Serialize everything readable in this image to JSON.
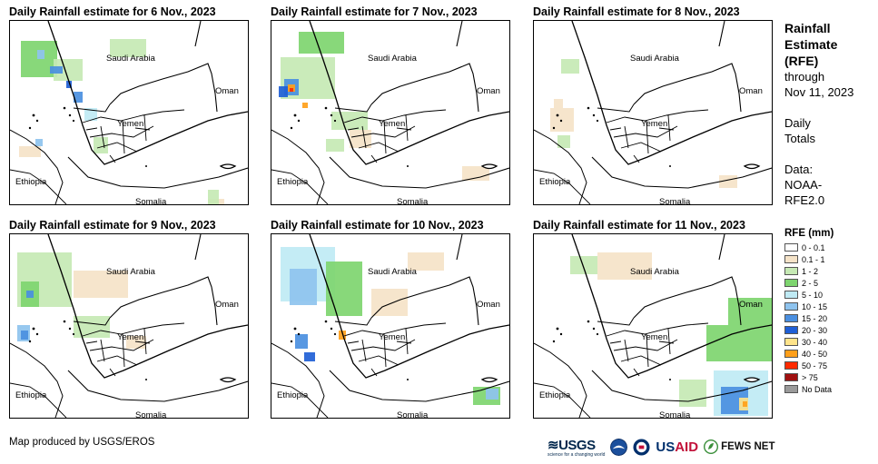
{
  "panels": [
    {
      "title": "Daily Rainfall estimate for 6 Nov., 2023"
    },
    {
      "title": "Daily Rainfall estimate for 7 Nov., 2023"
    },
    {
      "title": "Daily Rainfall estimate for 8 Nov., 2023"
    },
    {
      "title": "Daily Rainfall estimate for 9 Nov., 2023"
    },
    {
      "title": "Daily Rainfall estimate for 10 Nov., 2023"
    },
    {
      "title": "Daily Rainfall estimate for 11 Nov., 2023"
    }
  ],
  "map_labels": {
    "saudi": "Saudi Arabia",
    "oman": "Oman",
    "yemen": "Yemen",
    "ethiopia": "Ethiopia",
    "somalia": "Somalia"
  },
  "side_text": {
    "heading_1": "Rainfall",
    "heading_2": "Estimate",
    "heading_3": "(RFE)",
    "through": "through",
    "date": "Nov 11, 2023",
    "daily": "Daily",
    "totals": "Totals",
    "data_label": "Data:",
    "source_1": "NOAA-",
    "source_2": "RFE2.0"
  },
  "legend": {
    "title": "RFE (mm)",
    "items": [
      {
        "label": "0 - 0.1",
        "color": "#ffffff"
      },
      {
        "label": "0.1 - 1",
        "color": "#f5e3c8"
      },
      {
        "label": "1 - 2",
        "color": "#c6e9b4"
      },
      {
        "label": "2 - 5",
        "color": "#7ed56f"
      },
      {
        "label": "5 - 10",
        "color": "#bfeaf4"
      },
      {
        "label": "10 - 15",
        "color": "#8ec3ee"
      },
      {
        "label": "15 - 20",
        "color": "#4a8fe0"
      },
      {
        "label": "20 - 30",
        "color": "#1f5fd6"
      },
      {
        "label": "30 - 40",
        "color": "#ffe48a"
      },
      {
        "label": "40 - 50",
        "color": "#ff9f1a"
      },
      {
        "label": "50 - 75",
        "color": "#ff2a00"
      },
      {
        "label": "> 75",
        "color": "#a01010"
      },
      {
        "label": "No Data",
        "color": "#9a9a9a"
      }
    ]
  },
  "credit": "Map produced by USGS/EROS",
  "logos": {
    "usgs": "USGS",
    "usgs_tagline": "science for a changing world",
    "noaa": "noaa-seal-icon",
    "usaid_us": "US",
    "usaid_aid": "AID",
    "fews": "FEWS NET"
  }
}
